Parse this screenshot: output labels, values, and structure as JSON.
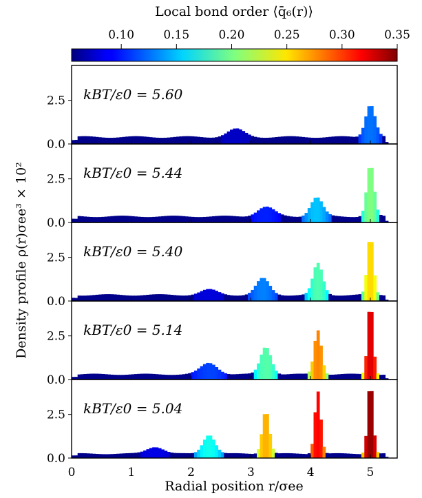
{
  "chart_data": {
    "type": "bar",
    "colorbar": {
      "label": "Local bond order ⟨q̄₆(r)⟩",
      "ticks": [
        "0.10",
        "0.15",
        "0.20",
        "0.25",
        "0.30",
        "0.35"
      ],
      "range": [
        0.055,
        0.35
      ],
      "colormap": "jet"
    },
    "ylabel": "Density profile ρ(r)σee³ × 10²",
    "xlabel": "Radial position r/σee",
    "xlim": [
      0,
      5.45
    ],
    "ylim": [
      0,
      4.5
    ],
    "xticks": [
      "0",
      "1",
      "2",
      "3",
      "4",
      "5"
    ],
    "yticks": [
      "0.0",
      "2.5"
    ],
    "panels": [
      {
        "label": "kBT/ε0 = 5.60",
        "bg": 0.4,
        "peaks": [
          {
            "center": 2.75,
            "height": 0.45,
            "width": 0.14,
            "q6": 0.08
          },
          {
            "center": 5.0,
            "height": 1.9,
            "width": 0.08,
            "q6": 0.13
          }
        ]
      },
      {
        "label": "kBT/ε0 = 5.44",
        "bg": 0.35,
        "peaks": [
          {
            "center": 3.25,
            "height": 0.55,
            "width": 0.14,
            "q6": 0.11
          },
          {
            "center": 4.1,
            "height": 1.1,
            "width": 0.1,
            "q6": 0.16
          },
          {
            "center": 5.0,
            "height": 3.0,
            "width": 0.06,
            "q6": 0.21
          }
        ]
      },
      {
        "label": "kBT/ε0 = 5.40",
        "bg": 0.35,
        "peaks": [
          {
            "center": 2.3,
            "height": 0.3,
            "width": 0.14,
            "q6": 0.09
          },
          {
            "center": 3.2,
            "height": 0.95,
            "width": 0.11,
            "q6": 0.14
          },
          {
            "center": 4.12,
            "height": 1.8,
            "width": 0.08,
            "q6": 0.2
          },
          {
            "center": 5.0,
            "height": 3.4,
            "width": 0.05,
            "q6": 0.26
          }
        ]
      },
      {
        "label": "kBT/ε0 = 5.14",
        "bg": 0.3,
        "peaks": [
          {
            "center": 2.3,
            "height": 0.65,
            "width": 0.14,
            "q6": 0.12
          },
          {
            "center": 3.25,
            "height": 1.6,
            "width": 0.09,
            "q6": 0.2
          },
          {
            "center": 4.12,
            "height": 2.55,
            "width": 0.06,
            "q6": 0.285
          },
          {
            "center": 5.0,
            "height": 4.2,
            "width": 0.045,
            "q6": 0.33
          }
        ]
      },
      {
        "label": "kBT/ε0 = 5.04",
        "bg": 0.25,
        "peaks": [
          {
            "center": 1.4,
            "height": 0.4,
            "width": 0.14,
            "q6": 0.09
          },
          {
            "center": 2.3,
            "height": 1.1,
            "width": 0.1,
            "q6": 0.18
          },
          {
            "center": 3.25,
            "height": 2.5,
            "width": 0.06,
            "q6": 0.27
          },
          {
            "center": 4.12,
            "height": 3.6,
            "width": 0.05,
            "q6": 0.32
          },
          {
            "center": 5.0,
            "height": 4.2,
            "width": 0.045,
            "q6": 0.35
          }
        ]
      }
    ]
  }
}
